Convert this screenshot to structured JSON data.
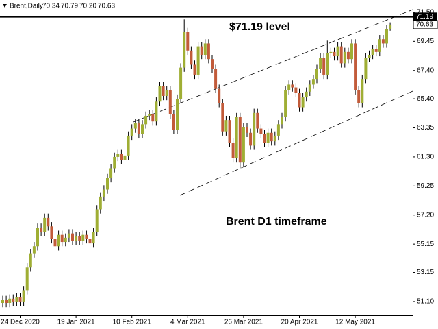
{
  "chart_data": {
    "type": "candlestick",
    "symbol": "Brent,Daily",
    "last_bar_labels": [
      "70.34",
      "70.79",
      "70.20",
      "70.63"
    ],
    "annotations": [
      "$71.19 level",
      "Brent D1 timeframe"
    ],
    "categories": [
      null,
      null,
      null,
      null,
      null,
      "24 Dec 2020",
      null,
      null,
      null,
      null,
      null,
      null,
      null,
      null,
      null,
      null,
      null,
      null,
      null,
      null,
      null,
      "19 Jan 2021",
      null,
      null,
      null,
      null,
      null,
      null,
      null,
      null,
      null,
      null,
      null,
      null,
      null,
      null,
      null,
      "10 Feb 2021",
      null,
      null,
      null,
      null,
      null,
      null,
      null,
      null,
      null,
      null,
      null,
      null,
      null,
      null,
      null,
      "4 Mar 2021",
      null,
      null,
      null,
      null,
      null,
      null,
      null,
      null,
      null,
      null,
      null,
      null,
      null,
      null,
      null,
      "26 Mar 2021",
      null,
      null,
      null,
      null,
      null,
      null,
      null,
      null,
      null,
      null,
      null,
      null,
      null,
      null,
      null,
      "20 Apr 2021",
      null,
      null,
      null,
      null,
      null,
      null,
      null,
      null,
      null,
      null,
      null,
      null,
      null,
      null,
      null,
      "12 May 2021",
      null,
      null,
      null,
      null,
      null,
      null,
      null,
      null,
      null,
      null
    ],
    "open": [
      51.0,
      51.2,
      51.0,
      51.3,
      51.1,
      51.4,
      51.1,
      51.9,
      53.5,
      54.5,
      55.0,
      56.3,
      56.0,
      57.0,
      56.4,
      55.5,
      55.0,
      55.8,
      55.3,
      55.6,
      55.9,
      55.4,
      55.7,
      55.4,
      55.8,
      55.5,
      55.2,
      56.0,
      57.6,
      58.5,
      59.0,
      59.8,
      60.5,
      61.3,
      61.5,
      61.1,
      61.4,
      62.8,
      63.3,
      63.7,
      62.9,
      63.6,
      64.2,
      64.3,
      63.8,
      65.2,
      66.3,
      65.6,
      66.0,
      64.3,
      63.2,
      65.4,
      67.6,
      70.1,
      68.8,
      67.8,
      67.1,
      69.1,
      68.5,
      69.3,
      68.2,
      67.5,
      66.1,
      65.1,
      63.1,
      63.9,
      62.3,
      61.2,
      64.1,
      60.9,
      63.4,
      63.0,
      62.1,
      64.4,
      63.3,
      62.9,
      62.3,
      63.0,
      62.4,
      62.8,
      63.6,
      64.1,
      66.0,
      66.4,
      66.2,
      65.8,
      64.8,
      65.5,
      65.9,
      66.4,
      66.8,
      67.5,
      68.3,
      67.1,
      68.6,
      68.7,
      68.4,
      69.1,
      67.9,
      68.7,
      68.2,
      69.3,
      66.0,
      65.1,
      66.8,
      68.3,
      68.5,
      68.9,
      68.7,
      69.6,
      69.3,
      70.34
    ],
    "high": [
      51.5,
      51.5,
      51.6,
      51.6,
      51.7,
      51.7,
      52.2,
      53.8,
      54.8,
      55.3,
      56.6,
      56.6,
      57.3,
      57.3,
      56.7,
      55.8,
      56.1,
      56.1,
      55.9,
      56.2,
      56.2,
      56.0,
      56.0,
      56.1,
      56.1,
      55.8,
      56.3,
      57.9,
      58.8,
      59.3,
      60.1,
      60.8,
      61.6,
      61.8,
      61.8,
      61.7,
      63.1,
      63.6,
      64.0,
      64.0,
      63.9,
      64.5,
      64.6,
      64.6,
      65.5,
      66.6,
      66.6,
      66.3,
      66.3,
      64.6,
      65.7,
      67.9,
      71.0,
      70.4,
      69.1,
      68.1,
      69.4,
      69.4,
      69.6,
      69.6,
      68.5,
      67.8,
      66.4,
      65.4,
      64.2,
      64.2,
      62.6,
      64.4,
      64.4,
      63.7,
      63.7,
      63.3,
      64.7,
      64.7,
      63.6,
      63.2,
      63.3,
      63.3,
      63.1,
      63.9,
      64.4,
      66.3,
      66.7,
      66.7,
      66.5,
      66.1,
      65.8,
      66.2,
      66.7,
      67.1,
      67.8,
      68.6,
      68.6,
      69.5,
      69.0,
      69.0,
      69.4,
      69.4,
      69.0,
      69.0,
      69.6,
      69.6,
      66.3,
      67.1,
      68.6,
      68.8,
      69.2,
      69.2,
      69.9,
      69.9,
      70.6,
      70.79
    ],
    "low": [
      50.7,
      50.7,
      50.7,
      50.8,
      50.8,
      50.8,
      50.8,
      51.6,
      53.2,
      54.2,
      54.7,
      55.7,
      55.7,
      56.1,
      55.2,
      54.7,
      54.7,
      55.0,
      55.0,
      55.3,
      55.1,
      55.1,
      55.1,
      55.1,
      55.2,
      54.9,
      54.9,
      55.7,
      57.3,
      58.2,
      58.7,
      59.5,
      60.2,
      61.0,
      60.8,
      60.8,
      61.1,
      62.5,
      63.0,
      62.6,
      62.6,
      63.3,
      63.9,
      63.5,
      63.5,
      64.9,
      65.3,
      65.3,
      64.0,
      62.9,
      62.9,
      65.1,
      67.3,
      68.5,
      67.5,
      66.8,
      66.8,
      68.2,
      68.2,
      67.9,
      67.2,
      65.8,
      64.8,
      62.8,
      62.8,
      62.0,
      60.9,
      60.9,
      60.5,
      60.6,
      62.7,
      61.8,
      61.8,
      63.0,
      62.6,
      62.0,
      62.0,
      62.1,
      62.1,
      62.5,
      63.3,
      63.8,
      65.7,
      65.9,
      65.5,
      64.5,
      64.5,
      65.2,
      65.6,
      66.1,
      66.5,
      67.2,
      66.8,
      66.8,
      68.3,
      68.1,
      68.1,
      67.6,
      67.6,
      67.9,
      67.9,
      65.7,
      64.8,
      64.8,
      66.5,
      68.0,
      68.2,
      68.4,
      68.4,
      69.0,
      69.0,
      70.2
    ],
    "close": [
      51.2,
      51.0,
      51.3,
      51.1,
      51.4,
      51.1,
      51.9,
      53.5,
      54.5,
      55.0,
      56.3,
      56.0,
      57.0,
      56.4,
      55.5,
      55.0,
      55.8,
      55.3,
      55.6,
      55.9,
      55.4,
      55.7,
      55.4,
      55.8,
      55.5,
      55.2,
      56.0,
      57.6,
      58.5,
      59.0,
      59.8,
      60.5,
      61.3,
      61.5,
      61.1,
      61.4,
      62.8,
      63.3,
      63.7,
      62.9,
      63.6,
      64.2,
      64.3,
      63.8,
      65.2,
      66.3,
      65.6,
      66.0,
      64.3,
      63.2,
      65.4,
      67.6,
      70.1,
      68.8,
      67.8,
      67.1,
      69.1,
      68.5,
      69.3,
      68.2,
      67.5,
      66.1,
      65.1,
      63.1,
      63.9,
      62.3,
      61.2,
      64.1,
      60.9,
      63.4,
      63.0,
      62.1,
      64.4,
      63.3,
      62.9,
      62.3,
      63.0,
      62.4,
      62.8,
      63.6,
      64.1,
      66.0,
      66.4,
      66.2,
      65.8,
      64.8,
      65.5,
      65.9,
      66.4,
      66.8,
      67.5,
      68.3,
      67.1,
      68.6,
      68.7,
      68.4,
      69.1,
      67.9,
      68.7,
      68.2,
      69.3,
      66.0,
      65.1,
      66.8,
      68.3,
      68.5,
      68.9,
      68.7,
      69.6,
      69.3,
      70.3,
      70.63
    ],
    "up_color": "#9fae34",
    "down_color": "#c25b3a",
    "ylim": [
      50.13,
      71.69
    ],
    "yticks": [
      {
        "value": 71.5,
        "label": "71.50"
      },
      {
        "value": 69.45,
        "label": "69.45"
      },
      {
        "value": 67.4,
        "label": "67.40"
      },
      {
        "value": 65.4,
        "label": "65.40"
      },
      {
        "value": 63.35,
        "label": "63.35"
      },
      {
        "value": 61.3,
        "label": "61.30"
      },
      {
        "value": 59.25,
        "label": "59.25"
      },
      {
        "value": 57.2,
        "label": "57.20"
      },
      {
        "value": 55.15,
        "label": "55.15"
      },
      {
        "value": 53.15,
        "label": "53.15"
      },
      {
        "value": 51.1,
        "label": "51.10"
      }
    ],
    "level": {
      "value": 71.19,
      "label": "71.19"
    },
    "current_price": {
      "value": 70.63,
      "label": "70.63"
    }
  }
}
